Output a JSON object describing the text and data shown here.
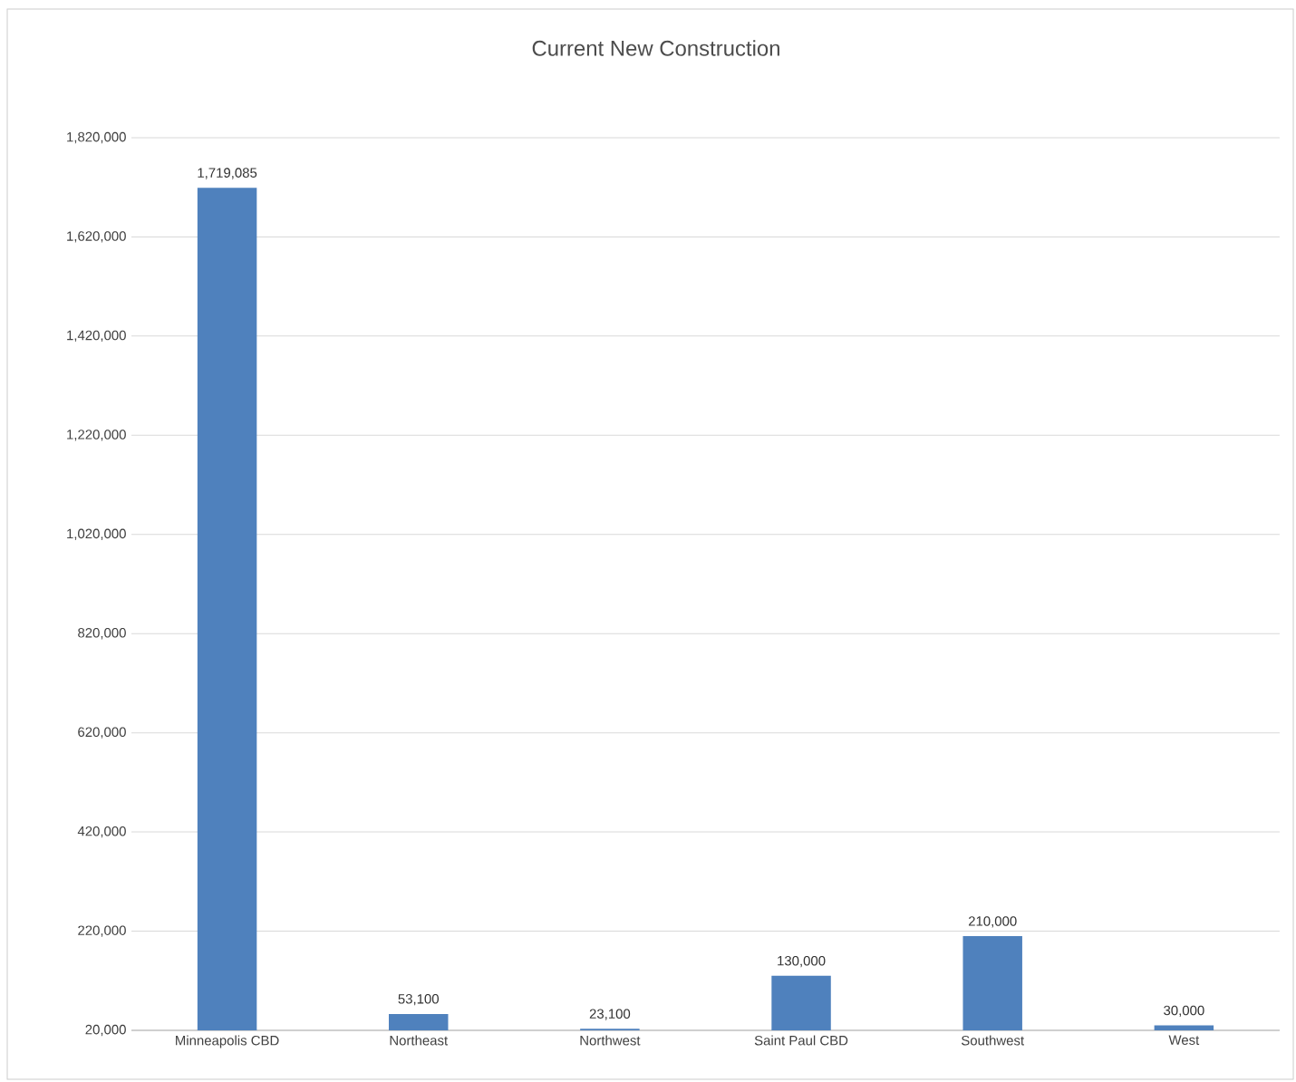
{
  "chart_data": {
    "type": "bar",
    "title": "Current New Construction",
    "categories": [
      "Minneapolis CBD",
      "Northeast",
      "Northwest",
      "Saint Paul CBD",
      "Southwest",
      "West"
    ],
    "values": [
      1719085,
      53100,
      23100,
      130000,
      210000,
      30000
    ],
    "color": "#4f81bd",
    "ylim": [
      20000,
      1820000
    ],
    "yticks": [
      {
        "value": 20000,
        "label": "20,000"
      },
      {
        "value": 220000,
        "label": "220,000"
      },
      {
        "value": 420000,
        "label": "420,000"
      },
      {
        "value": 620000,
        "label": "620,000"
      },
      {
        "value": 820000,
        "label": "820,000"
      },
      {
        "value": 1020000,
        "label": "1,020,000"
      },
      {
        "value": 1220000,
        "label": "1,220,000"
      },
      {
        "value": 1420000,
        "label": "1,420,000"
      },
      {
        "value": 1620000,
        "label": "1,620,000"
      },
      {
        "value": 1820000,
        "label": "1,820,000"
      }
    ],
    "grid": "y",
    "value_labels": [
      "1,719,085",
      "53,100",
      "23,100",
      "130,000",
      "210,000",
      "30,000"
    ]
  }
}
